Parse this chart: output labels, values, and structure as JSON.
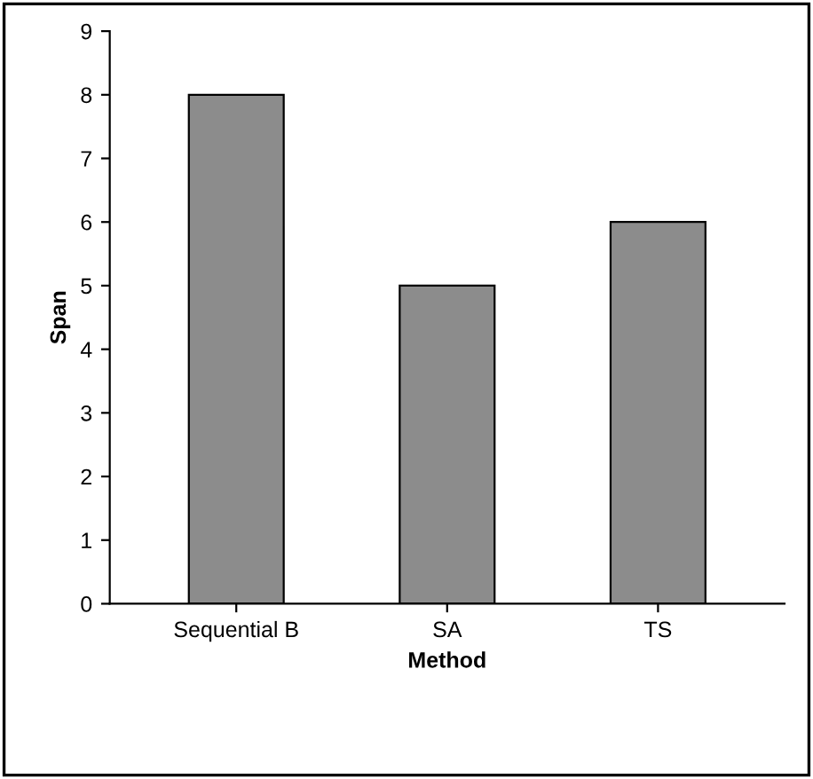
{
  "chart_data": {
    "type": "bar",
    "xlabel": "Method",
    "ylabel": "Span",
    "categories": [
      "Sequential B",
      "SA",
      "TS"
    ],
    "values": [
      8,
      5,
      6
    ],
    "color": "#8c8c8c",
    "ylim": [
      0,
      9
    ],
    "yticks": [
      0,
      1,
      2,
      3,
      4,
      5,
      6,
      7,
      8,
      9
    ],
    "grid": false
  }
}
